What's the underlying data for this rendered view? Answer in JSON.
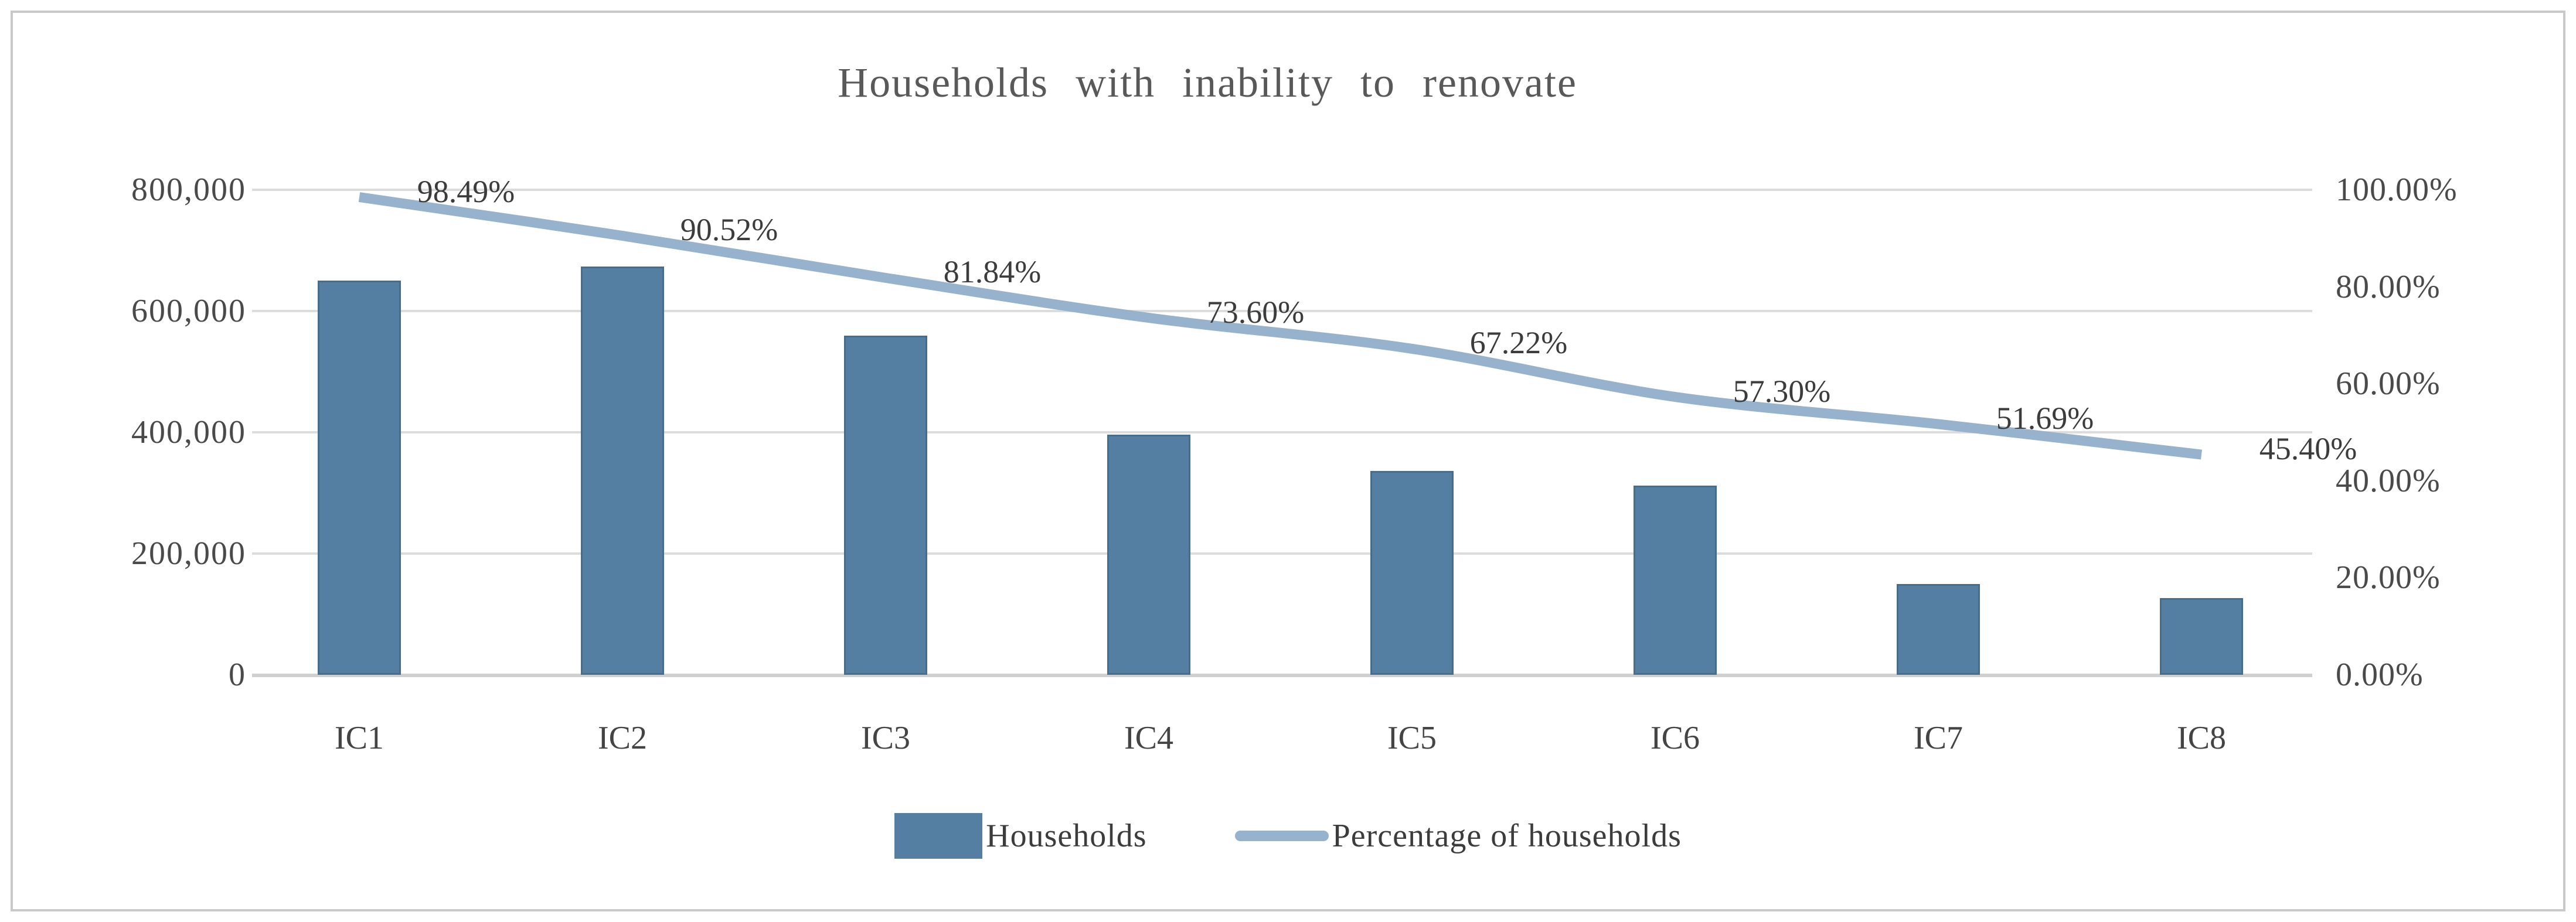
{
  "chart_data": {
    "type": "combo-bar-line",
    "title": "Households with inability to renovate",
    "categories": [
      "IC1",
      "IC2",
      "IC3",
      "IC4",
      "IC5",
      "IC6",
      "IC7",
      "IC8"
    ],
    "series": [
      {
        "name": "Households",
        "type": "bar",
        "axis": "left",
        "color": "#547fa3",
        "values": [
          650000,
          673000,
          559000,
          396000,
          336000,
          312000,
          150000,
          127000
        ]
      },
      {
        "name": "Percentage of households",
        "type": "line",
        "axis": "right",
        "color": "#97b2cc",
        "values": [
          98.49,
          90.52,
          81.84,
          73.6,
          67.22,
          57.3,
          51.69,
          45.4
        ],
        "data_labels": [
          "98.49%",
          "90.52%",
          "81.84%",
          "73.60%",
          "67.22%",
          "57.30%",
          "51.69%",
          "45.40%"
        ]
      }
    ],
    "left_axis": {
      "min": 0,
      "max": 800000,
      "tick_labels": [
        "0",
        "200,000",
        "400,000",
        "600,000",
        "800,000"
      ]
    },
    "right_axis": {
      "min_label": "0.00%",
      "max_label": "100.00%",
      "tick_labels": [
        "0.00%",
        "20.00%",
        "40.00%",
        "60.00%",
        "80.00%",
        "100.00%"
      ]
    },
    "grid": true,
    "legend_position": "bottom"
  },
  "colors": {
    "bar": "#547fa3",
    "line": "#97b2cc",
    "gridline": "#dcdcdc",
    "title_text": "#595959",
    "axis_text": "#4a4a4a",
    "data_label_text": "#3c3c3c",
    "frame_border": "#c9c9c9"
  }
}
